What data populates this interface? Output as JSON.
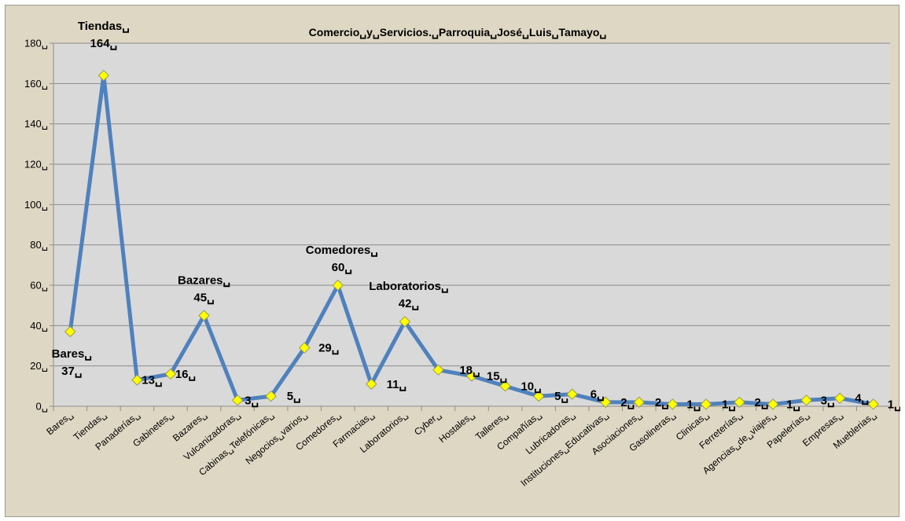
{
  "chart_data": {
    "type": "line",
    "title": "Comercio␣y␣Servicios.␣Parroquia␣José␣Luis␣Tamayo␣",
    "xlabel": "",
    "ylabel": "",
    "ylim": [
      0,
      180
    ],
    "yticks": [
      0,
      20,
      40,
      60,
      80,
      100,
      120,
      140,
      160,
      180
    ],
    "ytick_labels": [
      "0␣",
      "20␣",
      "40␣",
      "60␣",
      "80␣",
      "100␣",
      "120␣",
      "140␣",
      "160␣",
      "180␣"
    ],
    "grid": true,
    "legend": "none",
    "categories": [
      "Bares␣",
      "Tiendas␣",
      "Panaderías␣",
      "Gabinetes␣",
      "Bazares␣",
      "Vulcanizadoras␣",
      "Cabinas␣Telefónicas␣",
      "Negocios␣varios␣",
      "Comedores␣",
      "Farmacias␣",
      "Laboratorios␣",
      "Cyber␣",
      "Hostales␣",
      "Talleres␣",
      "Compañías␣",
      "Lubricadoras␣",
      "Instituciones␣Educativas␣",
      "Asociaciones␣",
      "Gasolineras␣",
      "Clinicas␣",
      "Ferreterías␣",
      "Agencias␣de␣viajes␣",
      "Papelerías␣",
      "Empresas␣",
      "Mueblerias␣"
    ],
    "values": [
      37,
      164,
      13,
      16,
      45,
      3,
      5,
      29,
      60,
      11,
      42,
      18,
      15,
      10,
      5,
      6,
      2,
      2,
      1,
      1,
      2,
      1,
      3,
      4,
      1
    ],
    "data_labels": [
      {
        "index": 0,
        "lines": [
          "Bares␣",
          "37␣"
        ]
      },
      {
        "index": 1,
        "lines": [
          "Tiendas␣",
          "164␣"
        ]
      },
      {
        "index": 2,
        "lines": [
          "13␣"
        ]
      },
      {
        "index": 3,
        "lines": [
          "16␣"
        ]
      },
      {
        "index": 4,
        "lines": [
          "Bazares␣",
          "45␣"
        ]
      },
      {
        "index": 5,
        "lines": [
          "3␣"
        ]
      },
      {
        "index": 6,
        "lines": [
          "5␣"
        ]
      },
      {
        "index": 7,
        "lines": [
          "29␣"
        ]
      },
      {
        "index": 8,
        "lines": [
          "Comedores␣",
          "60␣"
        ]
      },
      {
        "index": 9,
        "lines": [
          "11␣"
        ]
      },
      {
        "index": 10,
        "lines": [
          "Laboratorios␣",
          "42␣"
        ]
      },
      {
        "index": 11,
        "lines": [
          "18␣"
        ]
      },
      {
        "index": 12,
        "lines": [
          "15␣"
        ]
      },
      {
        "index": 13,
        "lines": [
          "10␣"
        ]
      },
      {
        "index": 14,
        "lines": [
          "5␣"
        ]
      },
      {
        "index": 15,
        "lines": [
          "6␣"
        ]
      },
      {
        "index": 16,
        "lines": [
          "2␣"
        ]
      },
      {
        "index": 17,
        "lines": [
          "2␣"
        ]
      },
      {
        "index": 18,
        "lines": [
          "1␣"
        ]
      },
      {
        "index": 19,
        "lines": [
          "1␣"
        ]
      },
      {
        "index": 20,
        "lines": [
          "2␣"
        ]
      },
      {
        "index": 21,
        "lines": [
          "1␣"
        ]
      },
      {
        "index": 22,
        "lines": [
          "3␣"
        ]
      },
      {
        "index": 23,
        "lines": [
          "4␣"
        ]
      },
      {
        "index": 24,
        "lines": [
          "1␣"
        ]
      }
    ]
  },
  "colors": {
    "frame_background": "#ded7c3",
    "plot_background": "#d9d9d9",
    "line": "#4f81bd",
    "marker_fill": "#ffff00",
    "marker_stroke": "#9c9a50",
    "grid": "#8c8c8c"
  }
}
